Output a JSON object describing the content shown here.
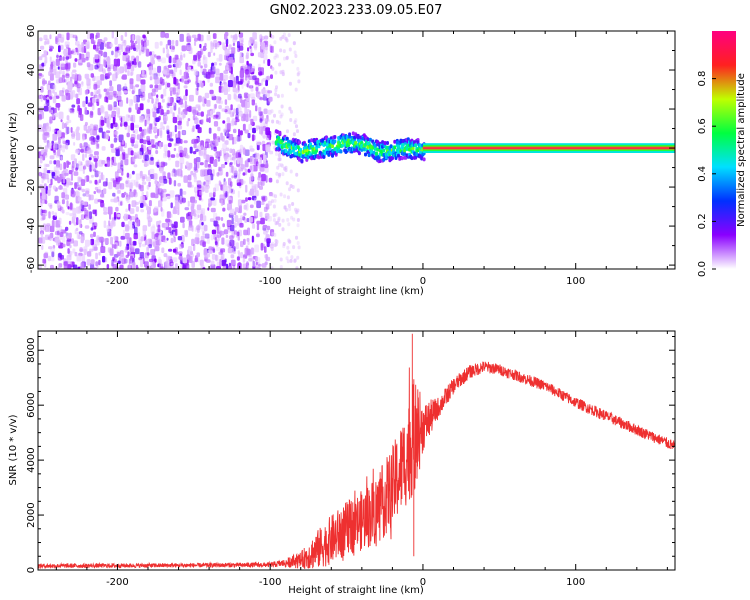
{
  "title": "GN02.2023.233.09.05.E07",
  "colors": {
    "snr_line": "#ee3030",
    "axis": "#000000",
    "background": "#ffffff"
  },
  "chart_data": [
    {
      "type": "heatmap",
      "xlabel": "Height of straight line (km)",
      "ylabel": "Frequency (Hz)",
      "xlim": [
        -252,
        165
      ],
      "ylim": [
        -62,
        60
      ],
      "xticks": [
        -200,
        -100,
        0,
        100
      ],
      "yticks": [
        -60,
        -40,
        -20,
        0,
        20,
        40,
        60
      ],
      "colorbar": {
        "label": "Normalized spectral amplitude",
        "range": [
          0,
          1
        ],
        "ticks": [
          0.0,
          0.2,
          0.4,
          0.6,
          0.8
        ],
        "colormap": [
          "#ffffff",
          "#8a00ff",
          "#0030ff",
          "#00e0ff",
          "#00ff40",
          "#c0ff00",
          "#ff2020",
          "#ff0080"
        ]
      },
      "regions": [
        {
          "kind": "noise",
          "x_range": [
            -252,
            -100
          ],
          "freq_range": [
            -62,
            60
          ],
          "amplitude": 0.1
        },
        {
          "kind": "signal",
          "x_range": [
            -97,
            0
          ],
          "freq_center": [
            [
              -97,
              5
            ],
            [
              -90,
              2
            ],
            [
              -80,
              -1
            ],
            [
              -70,
              1
            ],
            [
              -60,
              2
            ],
            [
              -50,
              4
            ],
            [
              -40,
              3
            ],
            [
              -30,
              -1
            ],
            [
              -20,
              0
            ],
            [
              -10,
              1
            ],
            [
              0,
              0
            ]
          ],
          "amplitude": 0.6
        },
        {
          "kind": "carrier",
          "x_range": [
            0,
            165
          ],
          "freq_center": 0,
          "amplitude": 0.95
        }
      ]
    },
    {
      "type": "line",
      "xlabel": "Height of straight line (km)",
      "ylabel": "SNR (10 * v/v)",
      "xlim": [
        -252,
        165
      ],
      "ylim": [
        0,
        8700
      ],
      "xticks": [
        -200,
        -100,
        0,
        100
      ],
      "yticks": [
        0,
        2000,
        4000,
        6000,
        8000
      ],
      "series": [
        {
          "x": [
            -252,
            -200,
            -150,
            -100,
            -90,
            -80,
            -70,
            -60,
            -50,
            -40,
            -30,
            -20,
            -10,
            -5,
            0,
            10,
            20,
            30,
            40,
            50,
            60,
            80,
            100,
            120,
            140,
            165
          ],
          "y": [
            150,
            160,
            170,
            190,
            250,
            350,
            700,
            1100,
            1500,
            1800,
            2200,
            3000,
            4200,
            5000,
            5200,
            5900,
            6700,
            7200,
            7400,
            7300,
            7100,
            6700,
            6100,
            5600,
            5100,
            4500
          ],
          "spread": [
            80,
            80,
            80,
            90,
            150,
            300,
            700,
            900,
            1000,
            1100,
            1300,
            1500,
            1800,
            2200,
            900,
            400,
            300,
            250,
            220,
            200,
            200,
            200,
            200,
            200,
            200,
            200
          ]
        }
      ],
      "annotations": [
        {
          "x": -7,
          "y": 8600,
          "note": "spike"
        }
      ]
    }
  ]
}
